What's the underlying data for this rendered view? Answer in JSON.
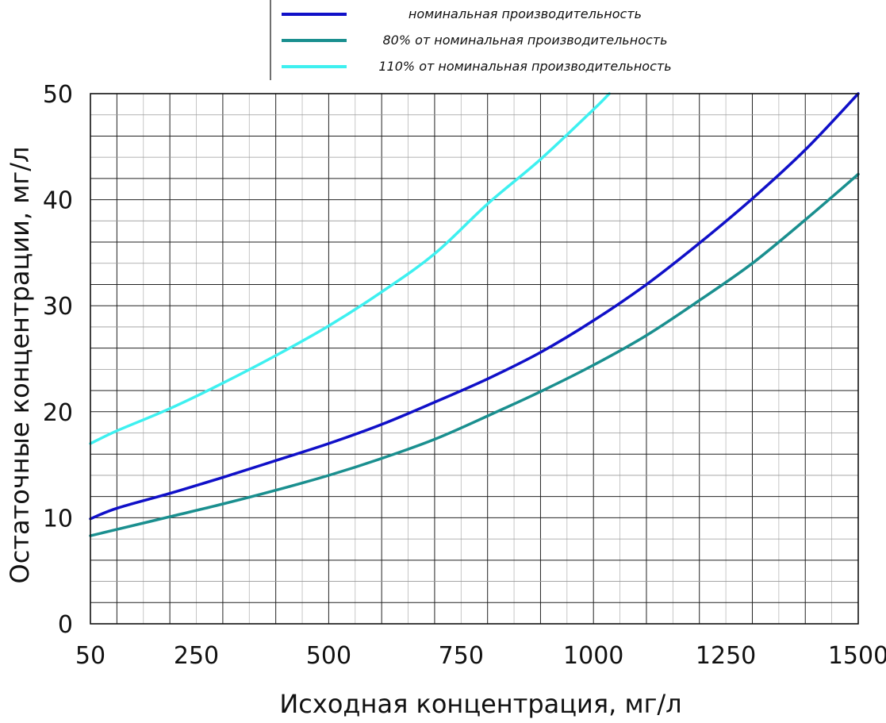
{
  "chart_data": {
    "type": "line",
    "title": "",
    "xlabel": "Исходная концентрация, мг/л",
    "ylabel": "Остаточные концентрации, мг/л",
    "xlim": [
      50,
      1500
    ],
    "ylim": [
      0,
      50
    ],
    "x_ticks": [
      "50",
      "250",
      "500",
      "750",
      "1000",
      "1250",
      "1500"
    ],
    "y_ticks": [
      "0",
      "10",
      "20",
      "30",
      "40",
      "50"
    ],
    "grid": true,
    "legend_position": "top",
    "series": [
      {
        "name": "номинальная производительность",
        "color": "#1010c8",
        "x": [
          50,
          100,
          200,
          300,
          400,
          500,
          600,
          700,
          800,
          900,
          1000,
          1100,
          1200,
          1300,
          1400,
          1500
        ],
        "y": [
          9.9,
          10.9,
          12.3,
          13.8,
          15.4,
          17.0,
          18.8,
          20.9,
          23.1,
          25.6,
          28.6,
          32.0,
          35.9,
          40.1,
          44.7,
          50.0
        ]
      },
      {
        "name": "80% от номинальная производительность",
        "color": "#1a8f8f",
        "x": [
          50,
          100,
          200,
          300,
          400,
          500,
          600,
          700,
          800,
          900,
          1000,
          1100,
          1200,
          1300,
          1400,
          1500
        ],
        "y": [
          8.3,
          8.9,
          10.1,
          11.3,
          12.6,
          14.0,
          15.6,
          17.4,
          19.6,
          21.9,
          24.4,
          27.2,
          30.5,
          34.0,
          38.1,
          42.4
        ]
      },
      {
        "name": "110% от номинальная производительность",
        "color": "#3ef0f0",
        "x": [
          50,
          100,
          200,
          300,
          400,
          500,
          600,
          700,
          800,
          900,
          1000,
          1030
        ],
        "y": [
          17.0,
          18.2,
          20.3,
          22.7,
          25.3,
          28.1,
          31.3,
          34.9,
          39.6,
          43.8,
          48.5,
          50.0
        ]
      }
    ]
  }
}
